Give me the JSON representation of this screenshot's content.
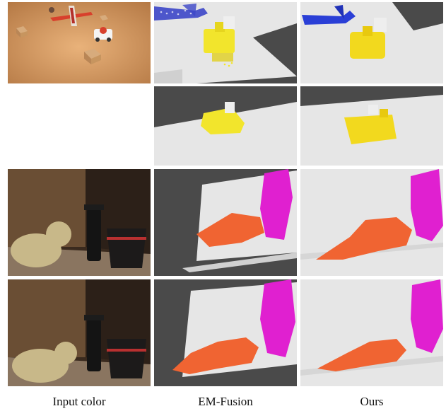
{
  "figure": {
    "columns": [
      {
        "label": "Input color"
      },
      {
        "label": "EM-Fusion"
      },
      {
        "label": "Ours"
      }
    ],
    "palette": {
      "plane": "#d8402c",
      "train": "#f2e52c",
      "cube": "#cfa070",
      "car": "#f4f4f4",
      "em_plane_blue": "#3c46c8",
      "ours_plane_blue": "#2a3fd6",
      "teddy_orange": "#f06432",
      "object_magenta": "#e020d0",
      "background_gray": "#e6e6e6",
      "void_dark": "#4a4a4a",
      "room_warm": "#c89258"
    },
    "rows": [
      {
        "row": 1,
        "scene": "toy scene",
        "panels": [
          "input-color",
          "em-fusion",
          "ours"
        ]
      },
      {
        "row": 2,
        "scene": "toy scene close-up",
        "panels": [
          "em-fusion",
          "ours"
        ]
      },
      {
        "row": 3,
        "scene": "teddy bear scene",
        "panels": [
          "input-color",
          "em-fusion",
          "ours"
        ]
      },
      {
        "row": 4,
        "scene": "teddy bear scene",
        "panels": [
          "input-color",
          "em-fusion",
          "ours"
        ]
      }
    ]
  }
}
